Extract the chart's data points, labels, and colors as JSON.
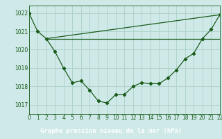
{
  "title": "Graphe pression niveau de la mer (hPa)",
  "bg_color": "#cfe9e9",
  "title_bg": "#336633",
  "grid_color": "#b0d4cc",
  "line_color": "#1a5c1a",
  "xlim": [
    0,
    22
  ],
  "ylim": [
    1016.5,
    1022.4
  ],
  "yticks": [
    1017,
    1018,
    1019,
    1020,
    1021,
    1022
  ],
  "xticks": [
    0,
    1,
    2,
    3,
    4,
    5,
    6,
    7,
    8,
    9,
    10,
    11,
    12,
    13,
    14,
    15,
    16,
    17,
    18,
    19,
    20,
    21,
    22
  ],
  "line1_x": [
    0,
    1,
    2,
    3,
    4,
    5,
    6,
    7,
    8,
    9,
    10,
    11,
    12,
    13,
    14,
    15,
    16,
    17,
    18,
    19,
    20,
    21,
    22
  ],
  "line1_y": [
    1022.0,
    1021.0,
    1020.6,
    1019.9,
    1019.0,
    1018.2,
    1018.3,
    1017.8,
    1017.2,
    1017.1,
    1017.55,
    1017.55,
    1018.0,
    1018.2,
    1018.15,
    1018.15,
    1018.45,
    1018.9,
    1019.5,
    1019.8,
    1020.6,
    1021.1,
    1021.9
  ],
  "line2_x": [
    2,
    22
  ],
  "line2_y": [
    1020.6,
    1020.6
  ],
  "line3_x": [
    2,
    22
  ],
  "line3_y": [
    1020.6,
    1021.9
  ],
  "tick_fontsize": 5.5,
  "title_fontsize": 6.5
}
